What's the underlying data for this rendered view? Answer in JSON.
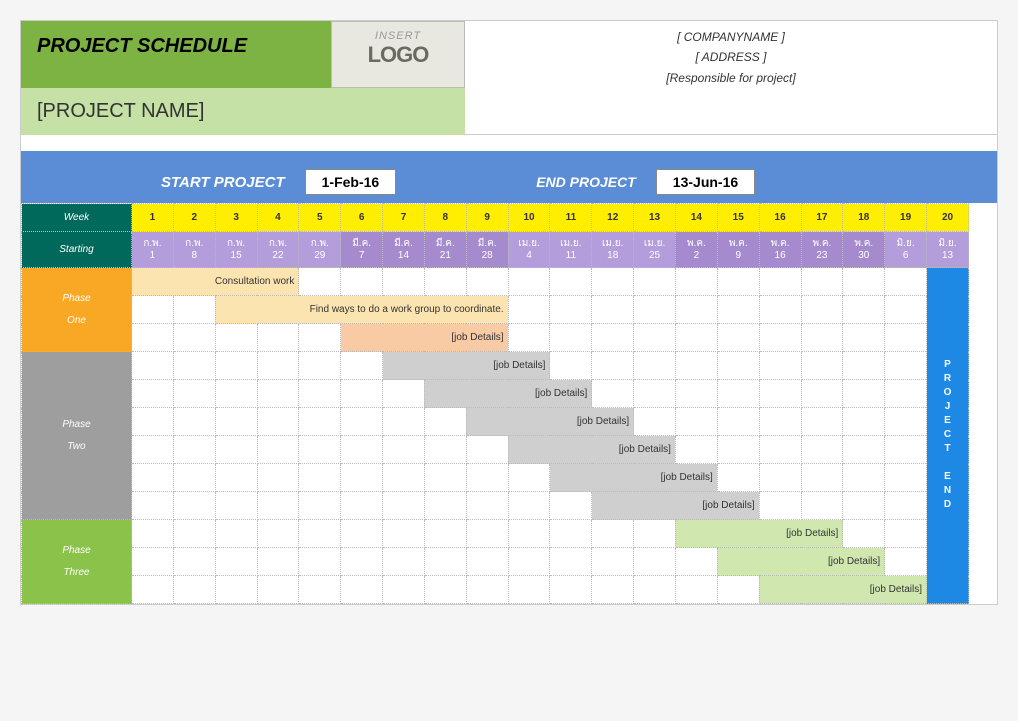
{
  "header": {
    "title": "PROJECT SCHEDULE",
    "project_name": "[PROJECT NAME]",
    "logo_insert": "INSERT",
    "logo_text": "LOGO",
    "company": "[ COMPANYNAME ]",
    "address": "[ ADDRESS ]",
    "responsible": "[Responsible for project]"
  },
  "dates": {
    "start_label": "START PROJECT",
    "start_value": "1-Feb-16",
    "end_label": "END PROJECT",
    "end_value": "13-Jun-16"
  },
  "table": {
    "week_label": "Week",
    "starting_label": "Starting",
    "project_end_label": "PROJECT END",
    "weeks": [
      1,
      2,
      3,
      4,
      5,
      6,
      7,
      8,
      9,
      10,
      11,
      12,
      13,
      14,
      15,
      16,
      17,
      18,
      19,
      20
    ],
    "starting_dates": [
      {
        "m": "ก.พ.",
        "d": 1
      },
      {
        "m": "ก.พ.",
        "d": 8
      },
      {
        "m": "ก.พ.",
        "d": 15
      },
      {
        "m": "ก.พ.",
        "d": 22
      },
      {
        "m": "ก.พ.",
        "d": 29
      },
      {
        "m": "มี.ค.",
        "d": 7
      },
      {
        "m": "มี.ค.",
        "d": 14
      },
      {
        "m": "มี.ค.",
        "d": 21
      },
      {
        "m": "มี.ค.",
        "d": 28
      },
      {
        "m": "เม.ย.",
        "d": 4
      },
      {
        "m": "เม.ย.",
        "d": 11
      },
      {
        "m": "เม.ย.",
        "d": 18
      },
      {
        "m": "เม.ย.",
        "d": 25
      },
      {
        "m": "พ.ค.",
        "d": 2
      },
      {
        "m": "พ.ค.",
        "d": 9
      },
      {
        "m": "พ.ค.",
        "d": 16
      },
      {
        "m": "พ.ค.",
        "d": 23
      },
      {
        "m": "พ.ค.",
        "d": 30
      },
      {
        "m": "มิ.ย.",
        "d": 6
      },
      {
        "m": "มิ.ย.",
        "d": 13
      }
    ],
    "month_shade_indices": [
      0,
      0,
      0,
      0,
      0,
      1,
      1,
      1,
      1,
      0,
      0,
      0,
      0,
      1,
      1,
      1,
      1,
      1,
      0,
      0
    ]
  },
  "phases": [
    {
      "name_top": "Phase",
      "name_bot": "One",
      "class": "phase-1",
      "bar": "bar-1"
    },
    {
      "name_top": "Phase",
      "name_bot": "Two",
      "class": "phase-2",
      "bar": "bar-2"
    },
    {
      "name_top": "Phase",
      "name_bot": "Three",
      "class": "phase-3",
      "bar": "bar-3"
    }
  ],
  "tasks": [
    {
      "phase": 0,
      "row": 0,
      "start": 0,
      "span": 4,
      "label": "Consultation work",
      "bar": "bar-1"
    },
    {
      "phase": 0,
      "row": 1,
      "start": 2,
      "span": 7,
      "label": "Find ways to do a work group to coordinate.",
      "bar": "bar-1"
    },
    {
      "phase": 0,
      "row": 2,
      "start": 5,
      "span": 4,
      "label": "[job Details]",
      "bar": "bar-1b"
    },
    {
      "phase": 1,
      "row": 0,
      "start": 6,
      "span": 4,
      "label": "[job Details]",
      "bar": "bar-2"
    },
    {
      "phase": 1,
      "row": 1,
      "start": 7,
      "span": 4,
      "label": "[job Details]",
      "bar": "bar-2"
    },
    {
      "phase": 1,
      "row": 2,
      "start": 8,
      "span": 4,
      "label": "[job Details]",
      "bar": "bar-2"
    },
    {
      "phase": 1,
      "row": 3,
      "start": 9,
      "span": 4,
      "label": "[job Details]",
      "bar": "bar-2"
    },
    {
      "phase": 1,
      "row": 4,
      "start": 10,
      "span": 4,
      "label": "[job Details]",
      "bar": "bar-2"
    },
    {
      "phase": 1,
      "row": 5,
      "start": 11,
      "span": 4,
      "label": "[job Details]",
      "bar": "bar-2"
    },
    {
      "phase": 2,
      "row": 0,
      "start": 13,
      "span": 4,
      "label": "[job Details]",
      "bar": "bar-3"
    },
    {
      "phase": 2,
      "row": 1,
      "start": 14,
      "span": 4,
      "label": "[job Details]",
      "bar": "bar-3"
    },
    {
      "phase": 2,
      "row": 2,
      "start": 15,
      "span": 4,
      "label": "[job Details]",
      "bar": "bar-3"
    }
  ],
  "phase_rows": [
    3,
    6,
    3
  ],
  "colors": {
    "title_bg": "#7cb342",
    "subtitle_bg": "#c5e1a5",
    "banner_bg": "#5b8dd6",
    "weeknum_bg": "#ffee00",
    "rowhdr_bg": "#00695c",
    "month_a": "#b39ddb",
    "month_b": "#a58bcd",
    "phase1": "#f9a825",
    "phase2": "#9e9e9e",
    "phase3": "#8bc34a",
    "bar1": "#fce4b0",
    "bar1b": "#f8cba5",
    "bar2": "#cfcfcf",
    "bar3": "#d0e8b0",
    "end_col": "#1e88e5"
  }
}
